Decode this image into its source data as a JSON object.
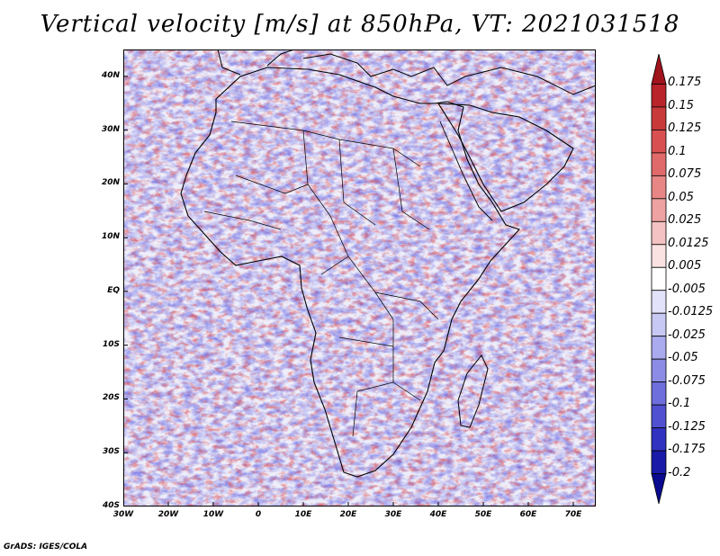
{
  "title": "Vertical velocity [m/s] at 850hPa, VT: 2021031518",
  "credit": "GrADS: IGES/COLA",
  "map": {
    "lat_labels": [
      "40N",
      "30N",
      "20N",
      "10N",
      "EQ",
      "10S",
      "20S",
      "30S",
      "40S"
    ],
    "lon_labels": [
      "30W",
      "20W",
      "10W",
      "0",
      "10E",
      "20E",
      "30E",
      "40E",
      "50E",
      "60E",
      "70E"
    ],
    "lat_values": [
      40,
      30,
      20,
      10,
      0,
      -10,
      -20,
      -30,
      -40
    ],
    "lon_values": [
      -30,
      -20,
      -10,
      0,
      10,
      20,
      30,
      40,
      50,
      60,
      70
    ],
    "lat_range": [
      -40,
      45
    ],
    "lon_range": [
      -30,
      75
    ]
  },
  "colorbar": {
    "labels": [
      "0.175",
      "0.15",
      "0.125",
      "0.1",
      "0.075",
      "0.05",
      "0.025",
      "0.0125",
      "0.005",
      "-0.005",
      "-0.0125",
      "-0.025",
      "-0.05",
      "-0.075",
      "-0.1",
      "-0.125",
      "-0.175",
      "-0.2"
    ],
    "colors": [
      "#a0141e",
      "#b8242a",
      "#c83a3a",
      "#d85050",
      "#e06a6a",
      "#e88686",
      "#eea2a2",
      "#f4c2c2",
      "#fae2e2",
      "#ffffff",
      "#e2e2fa",
      "#c8c8f4",
      "#aaaaee",
      "#8c8ce6",
      "#6e6edc",
      "#5050d0",
      "#3232c0",
      "#1a1aa8",
      "#0a0a90"
    ]
  }
}
